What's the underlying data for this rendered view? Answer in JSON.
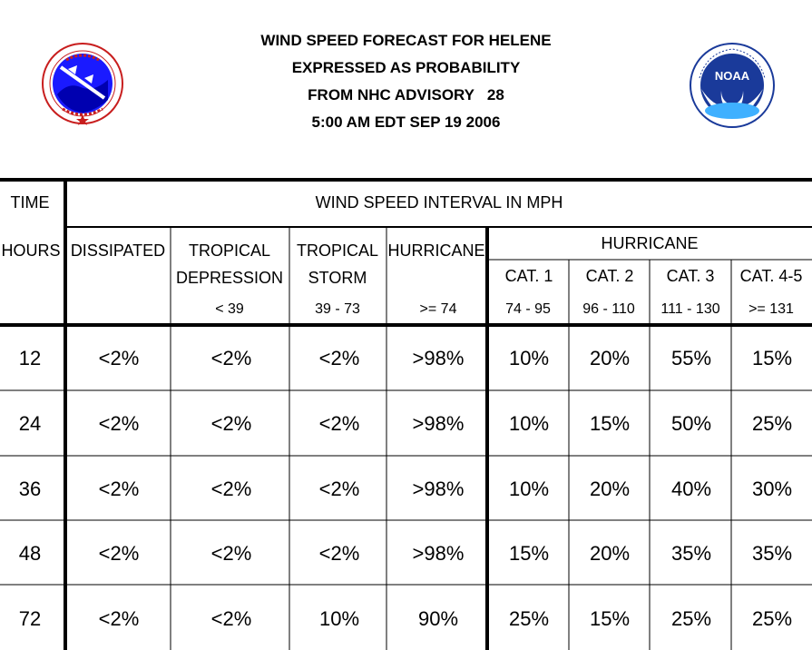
{
  "title": {
    "line1": "WIND SPEED FORECAST FOR HELENE",
    "line2": "EXPRESSED AS PROBABILITY",
    "line3": "FROM NHC ADVISORY   28",
    "line4": "5:00 AM EDT SEP 19 2006"
  },
  "logos": {
    "left": "nws-logo-icon",
    "right": "noaa-logo-icon",
    "right_text": "NOAA"
  },
  "table": {
    "time_header": "TIME",
    "interval_header": "WIND SPEED INTERVAL IN MPH",
    "hours_header": "HOURS",
    "columns": {
      "dissipated": "DISSIPATED",
      "td_line1": "TROPICAL",
      "td_line2": "DEPRESSION",
      "td_range": "< 39",
      "ts_line1": "TROPICAL",
      "ts_line2": "STORM",
      "ts_range": "39 - 73",
      "hurricane": "HURRICANE",
      "hurricane_range": ">= 74",
      "hurricane_group": "HURRICANE",
      "cat1": "CAT. 1",
      "cat1_range": "74 - 95",
      "cat2": "CAT. 2",
      "cat2_range": "96 - 110",
      "cat3": "CAT. 3",
      "cat3_range": "111 - 130",
      "cat45": "CAT. 4-5",
      "cat45_range": ">= 131"
    },
    "rows": [
      {
        "hours": "12",
        "values": [
          "<2%",
          "<2%",
          "<2%",
          ">98%",
          "10%",
          "20%",
          "55%",
          "15%"
        ]
      },
      {
        "hours": "24",
        "values": [
          "<2%",
          "<2%",
          "<2%",
          ">98%",
          "10%",
          "15%",
          "50%",
          "25%"
        ]
      },
      {
        "hours": "36",
        "values": [
          "<2%",
          "<2%",
          "<2%",
          ">98%",
          "10%",
          "20%",
          "40%",
          "30%"
        ]
      },
      {
        "hours": "48",
        "values": [
          "<2%",
          "<2%",
          "<2%",
          ">98%",
          "15%",
          "20%",
          "35%",
          "35%"
        ]
      },
      {
        "hours": "72",
        "values": [
          "<2%",
          "<2%",
          "10%",
          "90%",
          "25%",
          "15%",
          "25%",
          "25%"
        ]
      }
    ]
  }
}
